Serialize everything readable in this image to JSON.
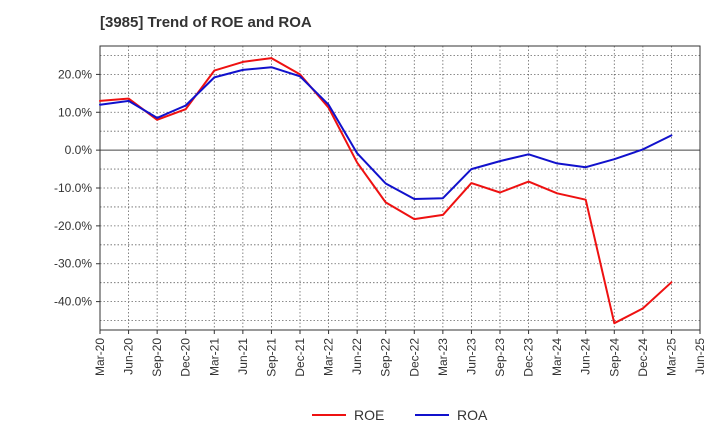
{
  "chart_data": {
    "type": "line",
    "title": "[3985]  Trend of ROE and ROA",
    "xlabel": "",
    "ylabel": "",
    "categories": [
      "Mar-20",
      "Jun-20",
      "Sep-20",
      "Dec-20",
      "Mar-21",
      "Jun-21",
      "Sep-21",
      "Dec-21",
      "Mar-22",
      "Jun-22",
      "Sep-22",
      "Dec-22",
      "Mar-23",
      "Jun-23",
      "Sep-23",
      "Dec-23",
      "Mar-24",
      "Jun-24",
      "Sep-24",
      "Dec-24",
      "Mar-25",
      "Jun-25"
    ],
    "ylim": [
      -47.5,
      27.5
    ],
    "yticks": [
      20,
      10,
      0,
      -10,
      -20,
      -30,
      -40
    ],
    "ytick_labels": [
      "20.0%",
      "10.0%",
      "0.0%",
      "-10.0%",
      "-20.0%",
      "-30.0%",
      "-40.0%"
    ],
    "grid": true,
    "legend_position": "bottom-center",
    "series": [
      {
        "name": "ROE",
        "color": "#ee1111",
        "values": [
          13.0,
          13.6,
          8.0,
          10.8,
          21.0,
          23.3,
          24.3,
          20.0,
          11.2,
          -3.3,
          -13.8,
          -18.2,
          -17.1,
          -8.7,
          -11.2,
          -8.3,
          -11.4,
          -13.1,
          -45.7,
          -41.8,
          -34.9,
          null
        ]
      },
      {
        "name": "ROA",
        "color": "#1111cc",
        "values": [
          12.0,
          13.0,
          8.5,
          11.8,
          19.2,
          21.2,
          21.9,
          19.5,
          12.0,
          -0.8,
          -8.8,
          -12.9,
          -12.7,
          -5.0,
          -2.9,
          -1.1,
          -3.5,
          -4.5,
          -2.4,
          0.2,
          3.9,
          null
        ]
      }
    ]
  }
}
